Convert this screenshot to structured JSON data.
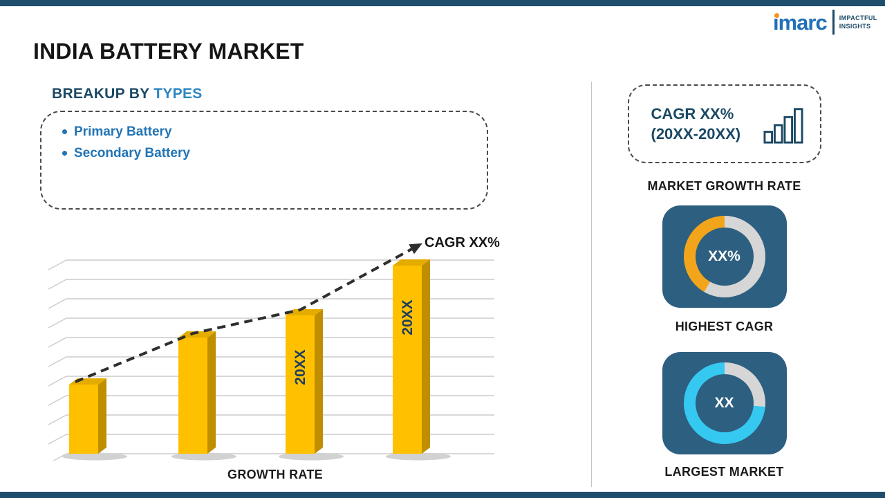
{
  "header": {
    "title": "INDIA BATTERY MARKET"
  },
  "logo": {
    "brand": "imarc",
    "tagline": [
      "IMPACTFUL",
      "INSIGHTS"
    ],
    "brand_color": "#2170b8",
    "dot_color": "#f7941d"
  },
  "breakup": {
    "label": "BREAKUP BY",
    "highlight": "TYPES",
    "items": [
      "Primary Battery",
      "Secondary Battery"
    ]
  },
  "chart_data": {
    "type": "bar",
    "title": "",
    "xlabel": "GROWTH RATE",
    "ylabel": "",
    "categories": [
      "",
      "",
      "20XX",
      "20XX"
    ],
    "values": [
      25,
      42,
      50,
      68
    ],
    "value_note_unit": "relative-height",
    "bar_color": "#FFC000",
    "bar_side_color": "#BF8F00",
    "bar_top_color": "#E5AC00",
    "label_color": "#1d3e5e",
    "grid": true,
    "trend_label": "CAGR XX%",
    "trend_style": "dashed-arrow-up"
  },
  "right_panel": {
    "tile_color": "#2d5f80",
    "growth_box": {
      "line1": "CAGR XX%",
      "line2": "(20XX-20XX)",
      "caption": "MARKET GROWTH RATE",
      "icon": "bar-chart-icon"
    },
    "highest_cagr": {
      "center": "XX%",
      "caption": "HIGHEST CAGR",
      "segment_color": "#F2A51A",
      "ring_color": "#D6D6D6",
      "segment_start_deg": 210,
      "segment_end_deg": 360
    },
    "largest_market": {
      "center": "XX",
      "caption": "LARGEST MARKET",
      "segment_color": "#D6D6D6",
      "ring_color": "#35C8F0",
      "segment_start_deg": 0,
      "segment_end_deg": 95
    }
  },
  "colors": {
    "accent_bar": "#1d4e6b",
    "heading_navy": "#1b4965",
    "heading_highlight": "#2e86c1",
    "bullet_blue": "#2274b5",
    "divider": "#c4c4c4"
  }
}
